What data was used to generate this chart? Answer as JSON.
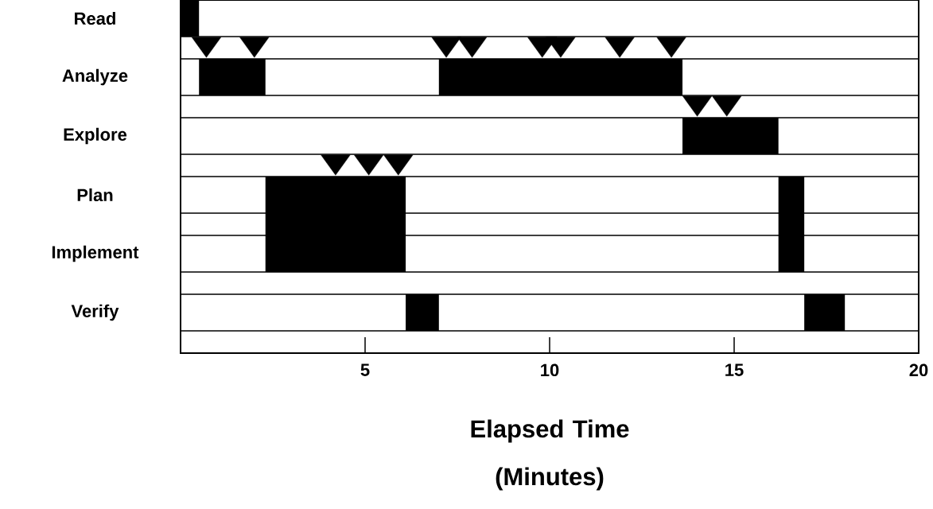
{
  "chart_data": {
    "type": "bar",
    "orientation": "horizontal",
    "categories": [
      "Read",
      null,
      "Analyze",
      null,
      "Explore",
      null,
      "Plan",
      null,
      "Implement",
      null,
      "Verify",
      null
    ],
    "series": [
      {
        "color": "#000000",
        "base": [
          0,
          null,
          0.5,
          null,
          13.6,
          null,
          2.3,
          2.3,
          2.3,
          null,
          6.1,
          null
        ],
        "values": [
          0.5,
          null,
          1.8,
          null,
          2.6,
          null,
          3.8,
          3.8,
          3.8,
          null,
          0.9,
          null
        ]
      },
      {
        "color": "#000000",
        "base": [
          null,
          null,
          7.0,
          null,
          null,
          null,
          16.2,
          16.2,
          16.2,
          null,
          16.9,
          null
        ],
        "values": [
          null,
          null,
          6.6,
          null,
          null,
          null,
          0.7,
          0.7,
          0.7,
          null,
          1.1,
          null
        ]
      },
      {
        "type": "scatter",
        "marker": "triangle",
        "color": "#000000",
        "values": [
          null,
          0.7,
          null,
          14.0,
          null,
          4.2,
          null,
          null,
          null,
          null,
          null,
          null
        ]
      },
      {
        "type": "scatter",
        "marker": "triangle",
        "color": "#000000",
        "values": [
          null,
          2.0,
          null,
          14.8,
          null,
          5.1,
          null,
          null,
          null,
          null,
          null,
          null
        ]
      },
      {
        "type": "scatter",
        "marker": "triangle",
        "color": "#000000",
        "values": [
          null,
          7.2,
          null,
          null,
          null,
          5.9,
          null,
          null,
          null,
          null,
          null,
          null
        ]
      },
      {
        "type": "scatter",
        "marker": "triangle",
        "color": "#000000",
        "values": [
          null,
          7.9,
          null,
          null,
          null,
          null,
          null,
          null,
          null,
          null,
          null,
          null
        ]
      },
      {
        "type": "scatter",
        "marker": "triangle",
        "color": "#000000",
        "values": [
          null,
          9.8,
          null,
          null,
          null,
          null,
          null,
          null,
          null,
          null,
          null,
          null
        ]
      },
      {
        "type": "scatter",
        "marker": "triangle",
        "color": "#000000",
        "values": [
          null,
          10.3,
          null,
          null,
          null,
          null,
          null,
          null,
          null,
          null,
          null,
          null
        ]
      },
      {
        "type": "scatter",
        "marker": "triangle",
        "color": "#000000",
        "values": [
          null,
          11.9,
          null,
          null,
          null,
          null,
          null,
          null,
          null,
          null,
          null,
          null
        ]
      },
      {
        "type": "scatter",
        "marker": "triangle",
        "color": "#000000",
        "values": [
          null,
          13.3,
          null,
          null,
          null,
          null,
          null,
          null,
          null,
          null,
          null,
          null
        ]
      }
    ],
    "xlabel": "Elapsed Time (Minutes)",
    "xlim": [
      0,
      20
    ],
    "xticks": [
      5,
      10,
      15,
      20
    ]
  }
}
